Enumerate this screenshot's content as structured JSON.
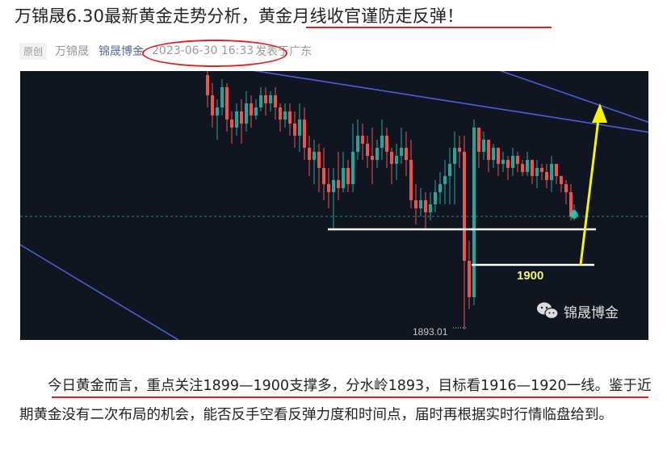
{
  "article": {
    "title_part1": "万锦晟6.30最新黄金走势分析，",
    "title_part2": "黄金月线收官谨防走反弹！",
    "badge": "原创",
    "author": "万锦晟",
    "account": "锦晟博金",
    "datetime": "2023-06-30 16:33",
    "location": "发表于广东",
    "body": "今日黄金而言，重点关注1899—1900支撑多，分水岭1893，目标看1916—1920一线。鉴于近期黄金没有二次布局的机会，能否反手空看反弹力度和时间点，届时再根据实时行情临盘给到。"
  },
  "chart_image": {
    "support_label": "1900",
    "low_label": "1893.01",
    "watermark": "锦晟博金",
    "watermark_icon": "wechat-icon",
    "colors": {
      "background": "#0f1621",
      "up_candle": "#26a69a",
      "down_candle": "#ef5350",
      "trendline": "#4a5fd6",
      "arrow": "#f5f500",
      "support_line": "#ffffff"
    }
  }
}
